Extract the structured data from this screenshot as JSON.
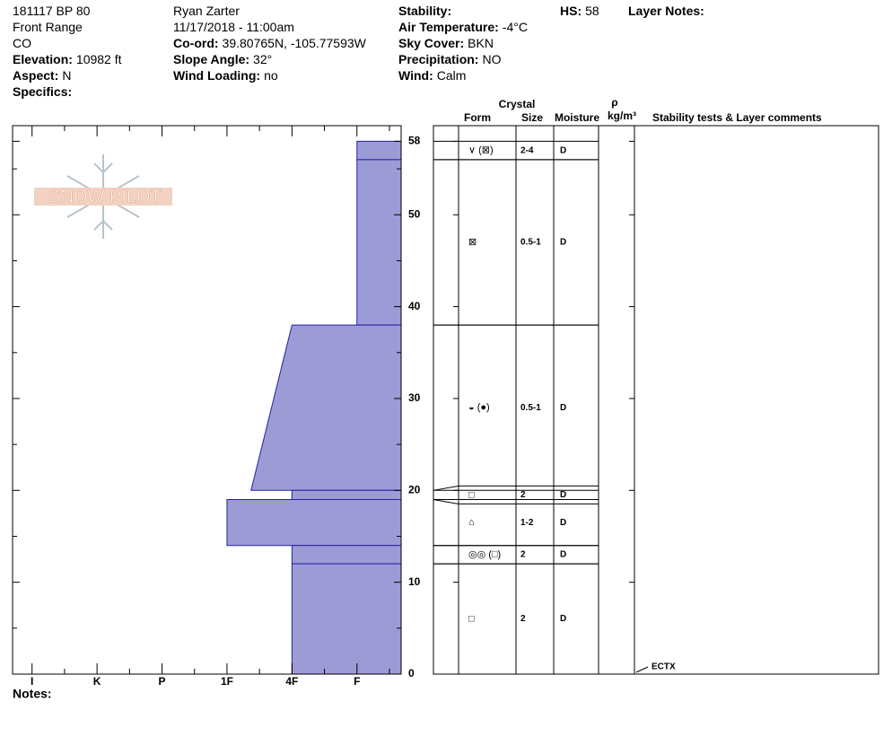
{
  "header": {
    "columns": [
      [
        {
          "value": "181117 BP 80"
        },
        {
          "value": "Front Range"
        },
        {
          "value": "CO"
        },
        {
          "label": "Elevation:",
          "value": "10982 ft"
        },
        {
          "label": "Aspect:",
          "value": "N"
        },
        {
          "label": "Specifics:"
        }
      ],
      [
        {
          "value": "Ryan Zarter"
        },
        {
          "value": "11/17/2018 - 11:00am"
        },
        {
          "label": "Co-ord:",
          "value": "39.80765N, -105.77593W"
        },
        {
          "label": "Slope Angle:",
          "value": "32°"
        },
        {
          "label": "Wind Loading:",
          "value": "no"
        }
      ],
      [
        {
          "label": "Stability:"
        },
        {
          "label": "Air Temperature:",
          "value": "-4°C"
        },
        {
          "label": "Sky Cover:",
          "value": "BKN"
        },
        {
          "label": "Precipitation:",
          "value": "NO"
        },
        {
          "label": "Wind:",
          "value": "Calm"
        }
      ],
      [
        {
          "label": "HS:",
          "value": "58"
        }
      ],
      [
        {
          "label": "Layer Notes:"
        }
      ]
    ]
  },
  "logo": "SNOW PILOT",
  "notes_label": "Notes:",
  "chart_data": {
    "type": "snowprofile",
    "color": "#9d9bd6",
    "edge_color": "#2222a0",
    "ylim": [
      0,
      59.7
    ],
    "yticks": [
      0,
      10,
      20,
      30,
      40,
      50,
      58
    ],
    "minor_yticks": [
      5,
      15,
      25,
      35,
      45,
      55
    ],
    "xlim": [
      6.3,
      0.32
    ],
    "xticks": [
      {
        "value": 6,
        "label": "I"
      },
      {
        "value": 5,
        "label": "K"
      },
      {
        "value": 4,
        "label": "P"
      },
      {
        "value": 3,
        "label": "1F"
      },
      {
        "value": 2,
        "label": "4F"
      },
      {
        "value": 1,
        "label": "F"
      }
    ],
    "minor_xticks": [
      5.5,
      4.5,
      3.5,
      2.5,
      1.5,
      0.5
    ],
    "table_headers": {
      "crystal": "Crystal",
      "form": "Form",
      "size": "Size",
      "moisture": "Moisture",
      "rho": "ρ",
      "density": "kg/m³",
      "comments": "Stability tests & Layer comments"
    },
    "layers": [
      {
        "top": 58,
        "bottom": 56,
        "hardness": [
          1,
          1
        ],
        "form": "∨ (⊠)",
        "size": "2-4",
        "moisture": "D"
      },
      {
        "top": 56,
        "bottom": 38,
        "hardness": [
          1,
          1
        ],
        "form": "⊠",
        "size": "0.5-1",
        "moisture": "D"
      },
      {
        "top": 38,
        "bottom": 20,
        "hardness": [
          2,
          2.63
        ],
        "form": "◒ (●)",
        "size": "0.5-1",
        "moisture": "D"
      },
      {
        "top": 20,
        "bottom": 19,
        "hardness": [
          2,
          2
        ],
        "form": "□",
        "size": "2",
        "moisture": "D"
      },
      {
        "top": 19,
        "bottom": 14,
        "hardness": [
          3,
          3
        ],
        "form": "⌂",
        "size": "1-2",
        "moisture": "D"
      },
      {
        "top": 14,
        "bottom": 12,
        "hardness": [
          2,
          2
        ],
        "form": "◎◎ (□)",
        "size": "2",
        "moisture": "D"
      },
      {
        "top": 12,
        "bottom": 0,
        "hardness": [
          2,
          2
        ],
        "form": "□",
        "size": "2",
        "moisture": "D"
      }
    ],
    "tests": [
      {
        "depth": 0,
        "label": "ECTX"
      }
    ]
  }
}
